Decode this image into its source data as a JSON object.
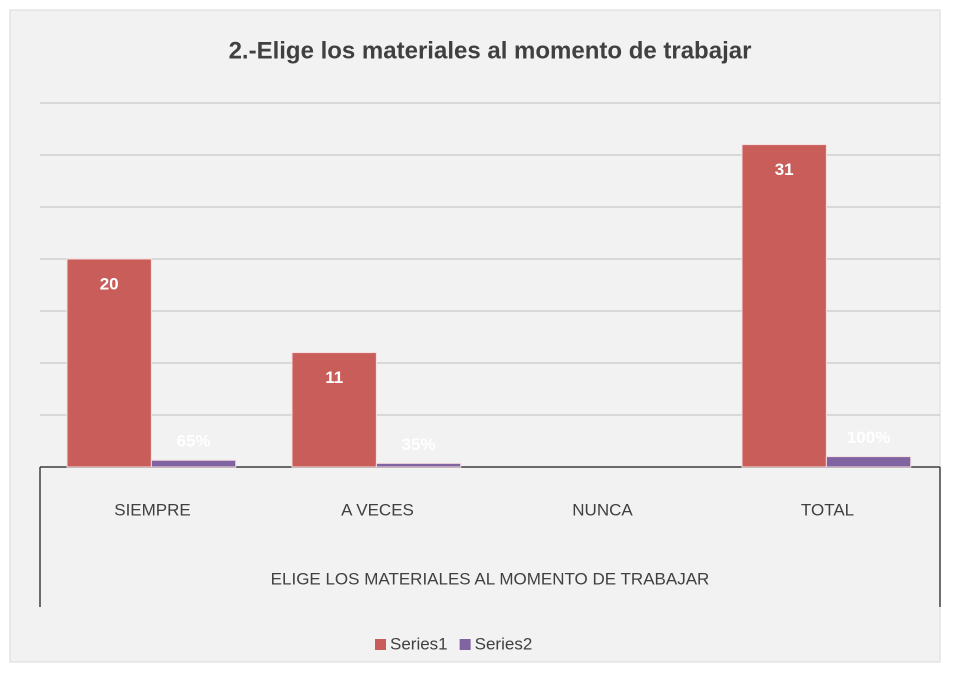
{
  "chart_data": {
    "type": "bar",
    "title": "2.-Elige los materiales al momento de  trabajar",
    "x_label": "ELIGE LOS MATERIALES AL MOMENTO DE  TRABAJAR",
    "categories": [
      "SIEMPRE",
      "A VECES",
      "NUNCA",
      "TOTAL"
    ],
    "series": [
      {
        "name": "Series1",
        "color": "#c85d5a",
        "values": [
          20,
          11,
          null,
          31
        ]
      },
      {
        "name": "Series2",
        "color": "#8064a2",
        "values": [
          0.65,
          0.35,
          null,
          1
        ],
        "value_labels": [
          "65%",
          "35%",
          null,
          "100%"
        ]
      }
    ],
    "ylim": [
      0,
      35
    ],
    "yticks": [
      0,
      5,
      10,
      15,
      20,
      25,
      30,
      35
    ],
    "grid": true,
    "legend": "bottom"
  }
}
